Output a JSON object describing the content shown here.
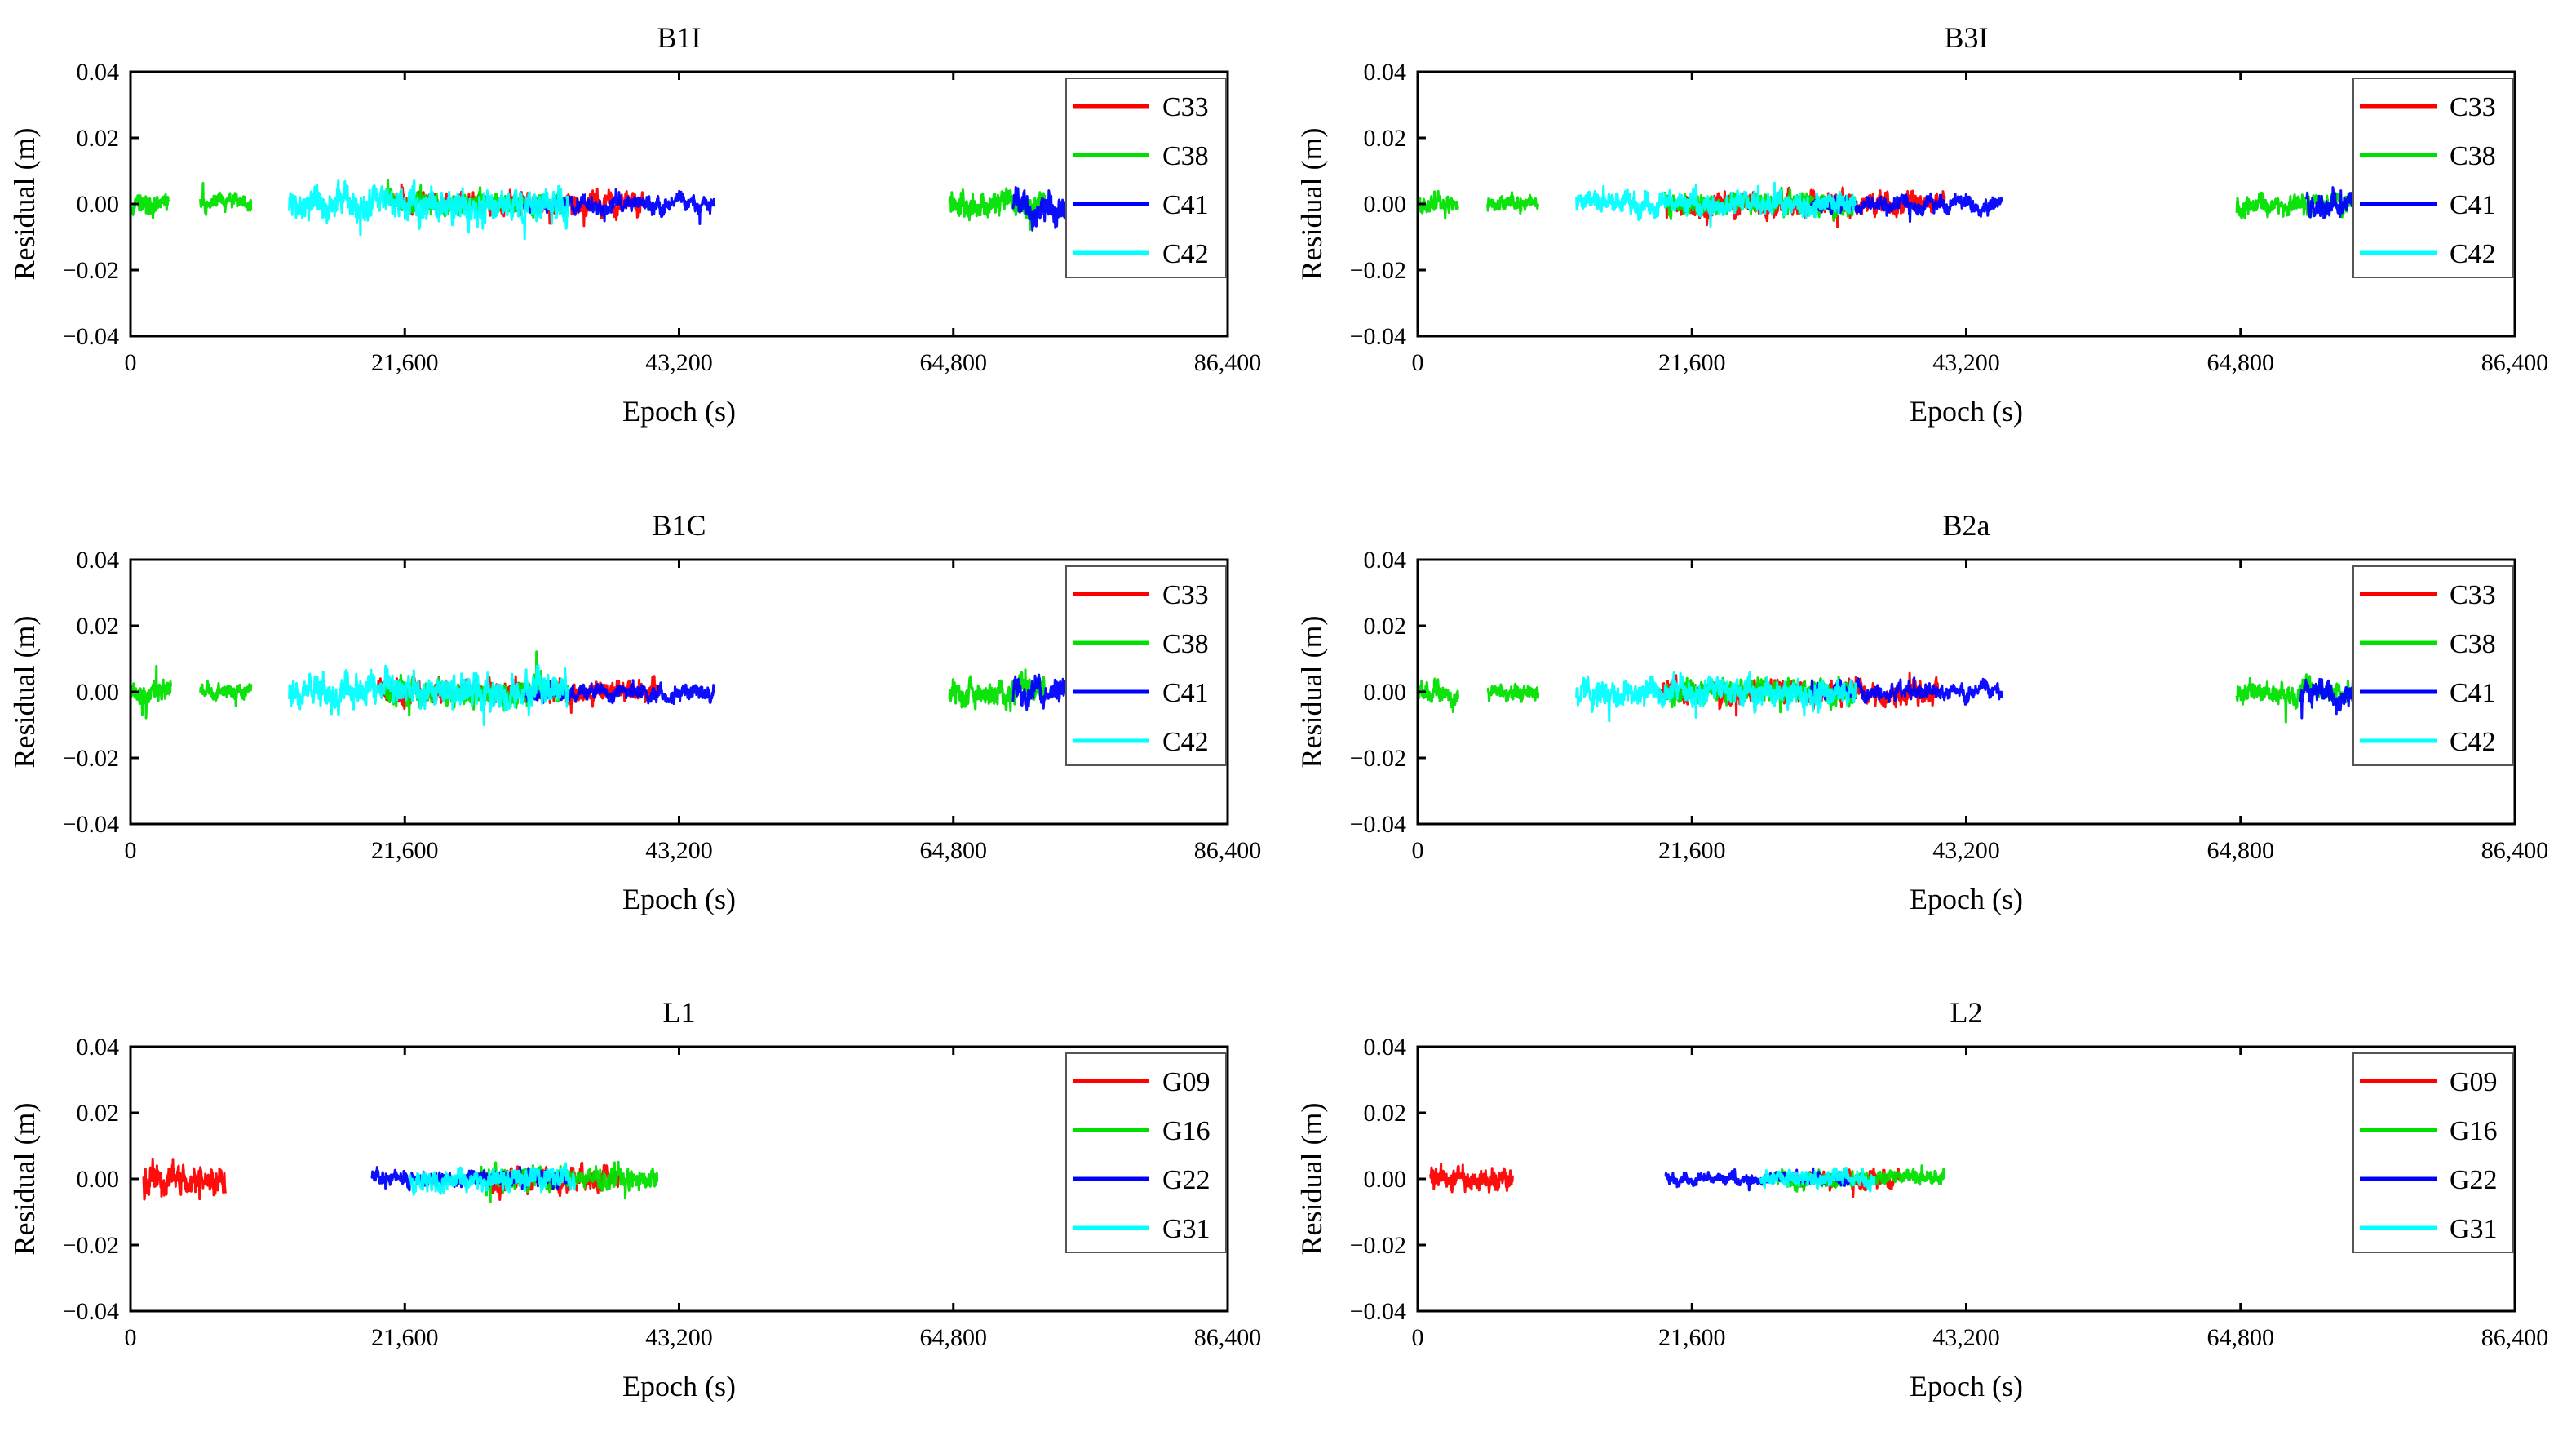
{
  "page": {
    "background": "#ffffff"
  },
  "chart_data": [
    {
      "type": "line",
      "title": "B1I",
      "xlabel": "Epoch (s)",
      "ylabel": "Residual (m)",
      "xlim": [
        0,
        86400
      ],
      "ylim": [
        -0.04,
        0.04
      ],
      "x_ticks": [
        0,
        21600,
        43200,
        64800,
        86400
      ],
      "x_tick_labels": [
        "0",
        "21,600",
        "43,200",
        "64,800",
        "86,400"
      ],
      "y_ticks": [
        -0.04,
        -0.02,
        0.0,
        0.02,
        0.04
      ],
      "y_tick_labels": [
        "−0.04",
        "−0.02",
        "0.00",
        "0.02",
        "0.04"
      ],
      "grid": false,
      "legend_position": "top-right",
      "series": [
        {
          "name": "C33",
          "color": "#ff0000",
          "segments": [
            {
              "x": [
                20500,
                40500
              ],
              "amplitude": 0.004
            }
          ]
        },
        {
          "name": "C38",
          "color": "#00e000",
          "segments": [
            {
              "x": [
                0,
                3000
              ],
              "amplitude": 0.004
            },
            {
              "x": [
                5500,
                9500
              ],
              "amplitude": 0.003
            },
            {
              "x": [
                20000,
                34500
              ],
              "amplitude": 0.004
            },
            {
              "x": [
                64500,
                72000
              ],
              "amplitude": 0.005
            }
          ]
        },
        {
          "name": "C41",
          "color": "#0000ff",
          "segments": [
            {
              "x": [
                31000,
                46000
              ],
              "amplitude": 0.003
            },
            {
              "x": [
                69500,
                78000
              ],
              "amplitude": 0.006
            }
          ]
        },
        {
          "name": "C42",
          "color": "#00ffff",
          "segments": [
            {
              "x": [
                12500,
                34500
              ],
              "amplitude": 0.006
            },
            {
              "x": [
                74500,
                78500
              ],
              "amplitude": 0.004
            }
          ]
        }
      ]
    },
    {
      "type": "line",
      "title": "B3I",
      "xlabel": "Epoch (s)",
      "ylabel": "Residual (m)",
      "xlim": [
        0,
        86400
      ],
      "ylim": [
        -0.04,
        0.04
      ],
      "x_ticks": [
        0,
        21600,
        43200,
        64800,
        86400
      ],
      "x_tick_labels": [
        "0",
        "21,600",
        "43,200",
        "64,800",
        "86,400"
      ],
      "y_ticks": [
        -0.04,
        -0.02,
        0.0,
        0.02,
        0.04
      ],
      "y_tick_labels": [
        "−0.04",
        "−0.02",
        "0.00",
        "0.02",
        "0.04"
      ],
      "grid": false,
      "legend_position": "top-right",
      "series": [
        {
          "name": "C33",
          "color": "#ff0000",
          "segments": [
            {
              "x": [
                19500,
                41500
              ],
              "amplitude": 0.004
            }
          ]
        },
        {
          "name": "C38",
          "color": "#00e000",
          "segments": [
            {
              "x": [
                0,
                3200
              ],
              "amplitude": 0.003
            },
            {
              "x": [
                5500,
                9500
              ],
              "amplitude": 0.003
            },
            {
              "x": [
                19500,
                34500
              ],
              "amplitude": 0.004
            },
            {
              "x": [
                64500,
                78500
              ],
              "amplitude": 0.004
            }
          ]
        },
        {
          "name": "C41",
          "color": "#0000ff",
          "segments": [
            {
              "x": [
                31000,
                46000
              ],
              "amplitude": 0.003
            },
            {
              "x": [
                70000,
                76000
              ],
              "amplitude": 0.005
            }
          ]
        },
        {
          "name": "C42",
          "color": "#00ffff",
          "segments": [
            {
              "x": [
                12500,
                34500
              ],
              "amplitude": 0.004
            },
            {
              "x": [
                74500,
                77500
              ],
              "amplitude": 0.008
            }
          ]
        }
      ]
    },
    {
      "type": "line",
      "title": "B1C",
      "xlabel": "Epoch (s)",
      "ylabel": "Residual (m)",
      "xlim": [
        0,
        86400
      ],
      "ylim": [
        -0.04,
        0.04
      ],
      "x_ticks": [
        0,
        21600,
        43200,
        64800,
        86400
      ],
      "x_tick_labels": [
        "0",
        "21,600",
        "43,200",
        "64,800",
        "86,400"
      ],
      "y_ticks": [
        -0.04,
        -0.02,
        0.0,
        0.02,
        0.04
      ],
      "y_tick_labels": [
        "−0.04",
        "−0.02",
        "0.00",
        "0.02",
        "0.04"
      ],
      "grid": false,
      "legend_position": "top-right",
      "series": [
        {
          "name": "C33",
          "color": "#ff0000",
          "segments": [
            {
              "x": [
                19500,
                41500
              ],
              "amplitude": 0.004
            }
          ]
        },
        {
          "name": "C38",
          "color": "#00e000",
          "segments": [
            {
              "x": [
                0,
                3200
              ],
              "amplitude": 0.004
            },
            {
              "x": [
                5500,
                9500
              ],
              "amplitude": 0.003
            },
            {
              "x": [
                20000,
                34500
              ],
              "amplitude": 0.004
            },
            {
              "x": [
                64500,
                72000
              ],
              "amplitude": 0.005
            }
          ]
        },
        {
          "name": "C41",
          "color": "#0000ff",
          "segments": [
            {
              "x": [
                31000,
                46000
              ],
              "amplitude": 0.003
            },
            {
              "x": [
                69500,
                77500
              ],
              "amplitude": 0.005
            }
          ]
        },
        {
          "name": "C42",
          "color": "#00ffff",
          "segments": [
            {
              "x": [
                12500,
                34500
              ],
              "amplitude": 0.006
            },
            {
              "x": [
                74500,
                78500
              ],
              "amplitude": 0.005
            }
          ]
        }
      ]
    },
    {
      "type": "line",
      "title": "B2a",
      "xlabel": "Epoch (s)",
      "ylabel": "Residual (m)",
      "xlim": [
        0,
        86400
      ],
      "ylim": [
        -0.04,
        0.04
      ],
      "x_ticks": [
        0,
        21600,
        43200,
        64800,
        86400
      ],
      "x_tick_labels": [
        "0",
        "21,600",
        "43,200",
        "64,800",
        "86,400"
      ],
      "y_ticks": [
        -0.04,
        -0.02,
        0.0,
        0.02,
        0.04
      ],
      "y_tick_labels": [
        "−0.04",
        "−0.02",
        "0.00",
        "0.02",
        "0.04"
      ],
      "grid": false,
      "legend_position": "top-right",
      "series": [
        {
          "name": "C33",
          "color": "#ff0000",
          "segments": [
            {
              "x": [
                19000,
                41000
              ],
              "amplitude": 0.004
            }
          ]
        },
        {
          "name": "C38",
          "color": "#00e000",
          "segments": [
            {
              "x": [
                0,
                3200
              ],
              "amplitude": 0.004
            },
            {
              "x": [
                5500,
                9500
              ],
              "amplitude": 0.003
            },
            {
              "x": [
                19500,
                34500
              ],
              "amplitude": 0.004
            },
            {
              "x": [
                64500,
                78500
              ],
              "amplitude": 0.004
            }
          ]
        },
        {
          "name": "C41",
          "color": "#0000ff",
          "segments": [
            {
              "x": [
                31000,
                46000
              ],
              "amplitude": 0.003
            },
            {
              "x": [
                69500,
                75500
              ],
              "amplitude": 0.005
            }
          ]
        },
        {
          "name": "C42",
          "color": "#00ffff",
          "segments": [
            {
              "x": [
                12500,
                34500
              ],
              "amplitude": 0.005
            },
            {
              "x": [
                74500,
                78000
              ],
              "amplitude": 0.007
            }
          ]
        }
      ]
    },
    {
      "type": "line",
      "title": "L1",
      "xlabel": "Epoch (s)",
      "ylabel": "Residual (m)",
      "xlim": [
        0,
        86400
      ],
      "ylim": [
        -0.04,
        0.04
      ],
      "x_ticks": [
        0,
        21600,
        43200,
        64800,
        86400
      ],
      "x_tick_labels": [
        "0",
        "21,600",
        "43,200",
        "64,800",
        "86,400"
      ],
      "y_ticks": [
        -0.04,
        -0.02,
        0.0,
        0.02,
        0.04
      ],
      "y_tick_labels": [
        "−0.04",
        "−0.02",
        "0.00",
        "0.02",
        "0.04"
      ],
      "grid": false,
      "legend_position": "top-right",
      "series": [
        {
          "name": "G09",
          "color": "#ff0000",
          "segments": [
            {
              "x": [
                1000,
                7500
              ],
              "amplitude": 0.006
            },
            {
              "x": [
                28000,
                38500
              ],
              "amplitude": 0.004
            }
          ]
        },
        {
          "name": "G16",
          "color": "#00e000",
          "segments": [
            {
              "x": [
                27500,
                41500
              ],
              "amplitude": 0.004
            }
          ]
        },
        {
          "name": "G22",
          "color": "#0000ff",
          "segments": [
            {
              "x": [
                19000,
                34500
              ],
              "amplitude": 0.003
            }
          ]
        },
        {
          "name": "G31",
          "color": "#00ffff",
          "segments": [
            {
              "x": [
                22000,
                35000
              ],
              "amplitude": 0.004
            }
          ]
        }
      ]
    },
    {
      "type": "line",
      "title": "L2",
      "xlabel": "Epoch (s)",
      "ylabel": "Residual (m)",
      "xlim": [
        0,
        86400
      ],
      "ylim": [
        -0.04,
        0.04
      ],
      "x_ticks": [
        0,
        21600,
        43200,
        64800,
        86400
      ],
      "x_tick_labels": [
        "0",
        "21,600",
        "43,200",
        "64,800",
        "86,400"
      ],
      "y_ticks": [
        -0.04,
        -0.02,
        0.0,
        0.02,
        0.04
      ],
      "y_tick_labels": [
        "−0.04",
        "−0.02",
        "0.00",
        "0.02",
        "0.04"
      ],
      "grid": false,
      "legend_position": "top-right",
      "series": [
        {
          "name": "G09",
          "color": "#ff0000",
          "segments": [
            {
              "x": [
                1000,
                7500
              ],
              "amplitude": 0.004
            },
            {
              "x": [
                30000,
                38000
              ],
              "amplitude": 0.003
            }
          ]
        },
        {
          "name": "G16",
          "color": "#00e000",
          "segments": [
            {
              "x": [
                28000,
                41500
              ],
              "amplitude": 0.003
            }
          ]
        },
        {
          "name": "G22",
          "color": "#0000ff",
          "segments": [
            {
              "x": [
                19500,
                34000
              ],
              "amplitude": 0.002
            }
          ]
        },
        {
          "name": "G31",
          "color": "#00ffff",
          "segments": [
            {
              "x": [
                27000,
                36000
              ],
              "amplitude": 0.003
            }
          ]
        }
      ]
    }
  ]
}
